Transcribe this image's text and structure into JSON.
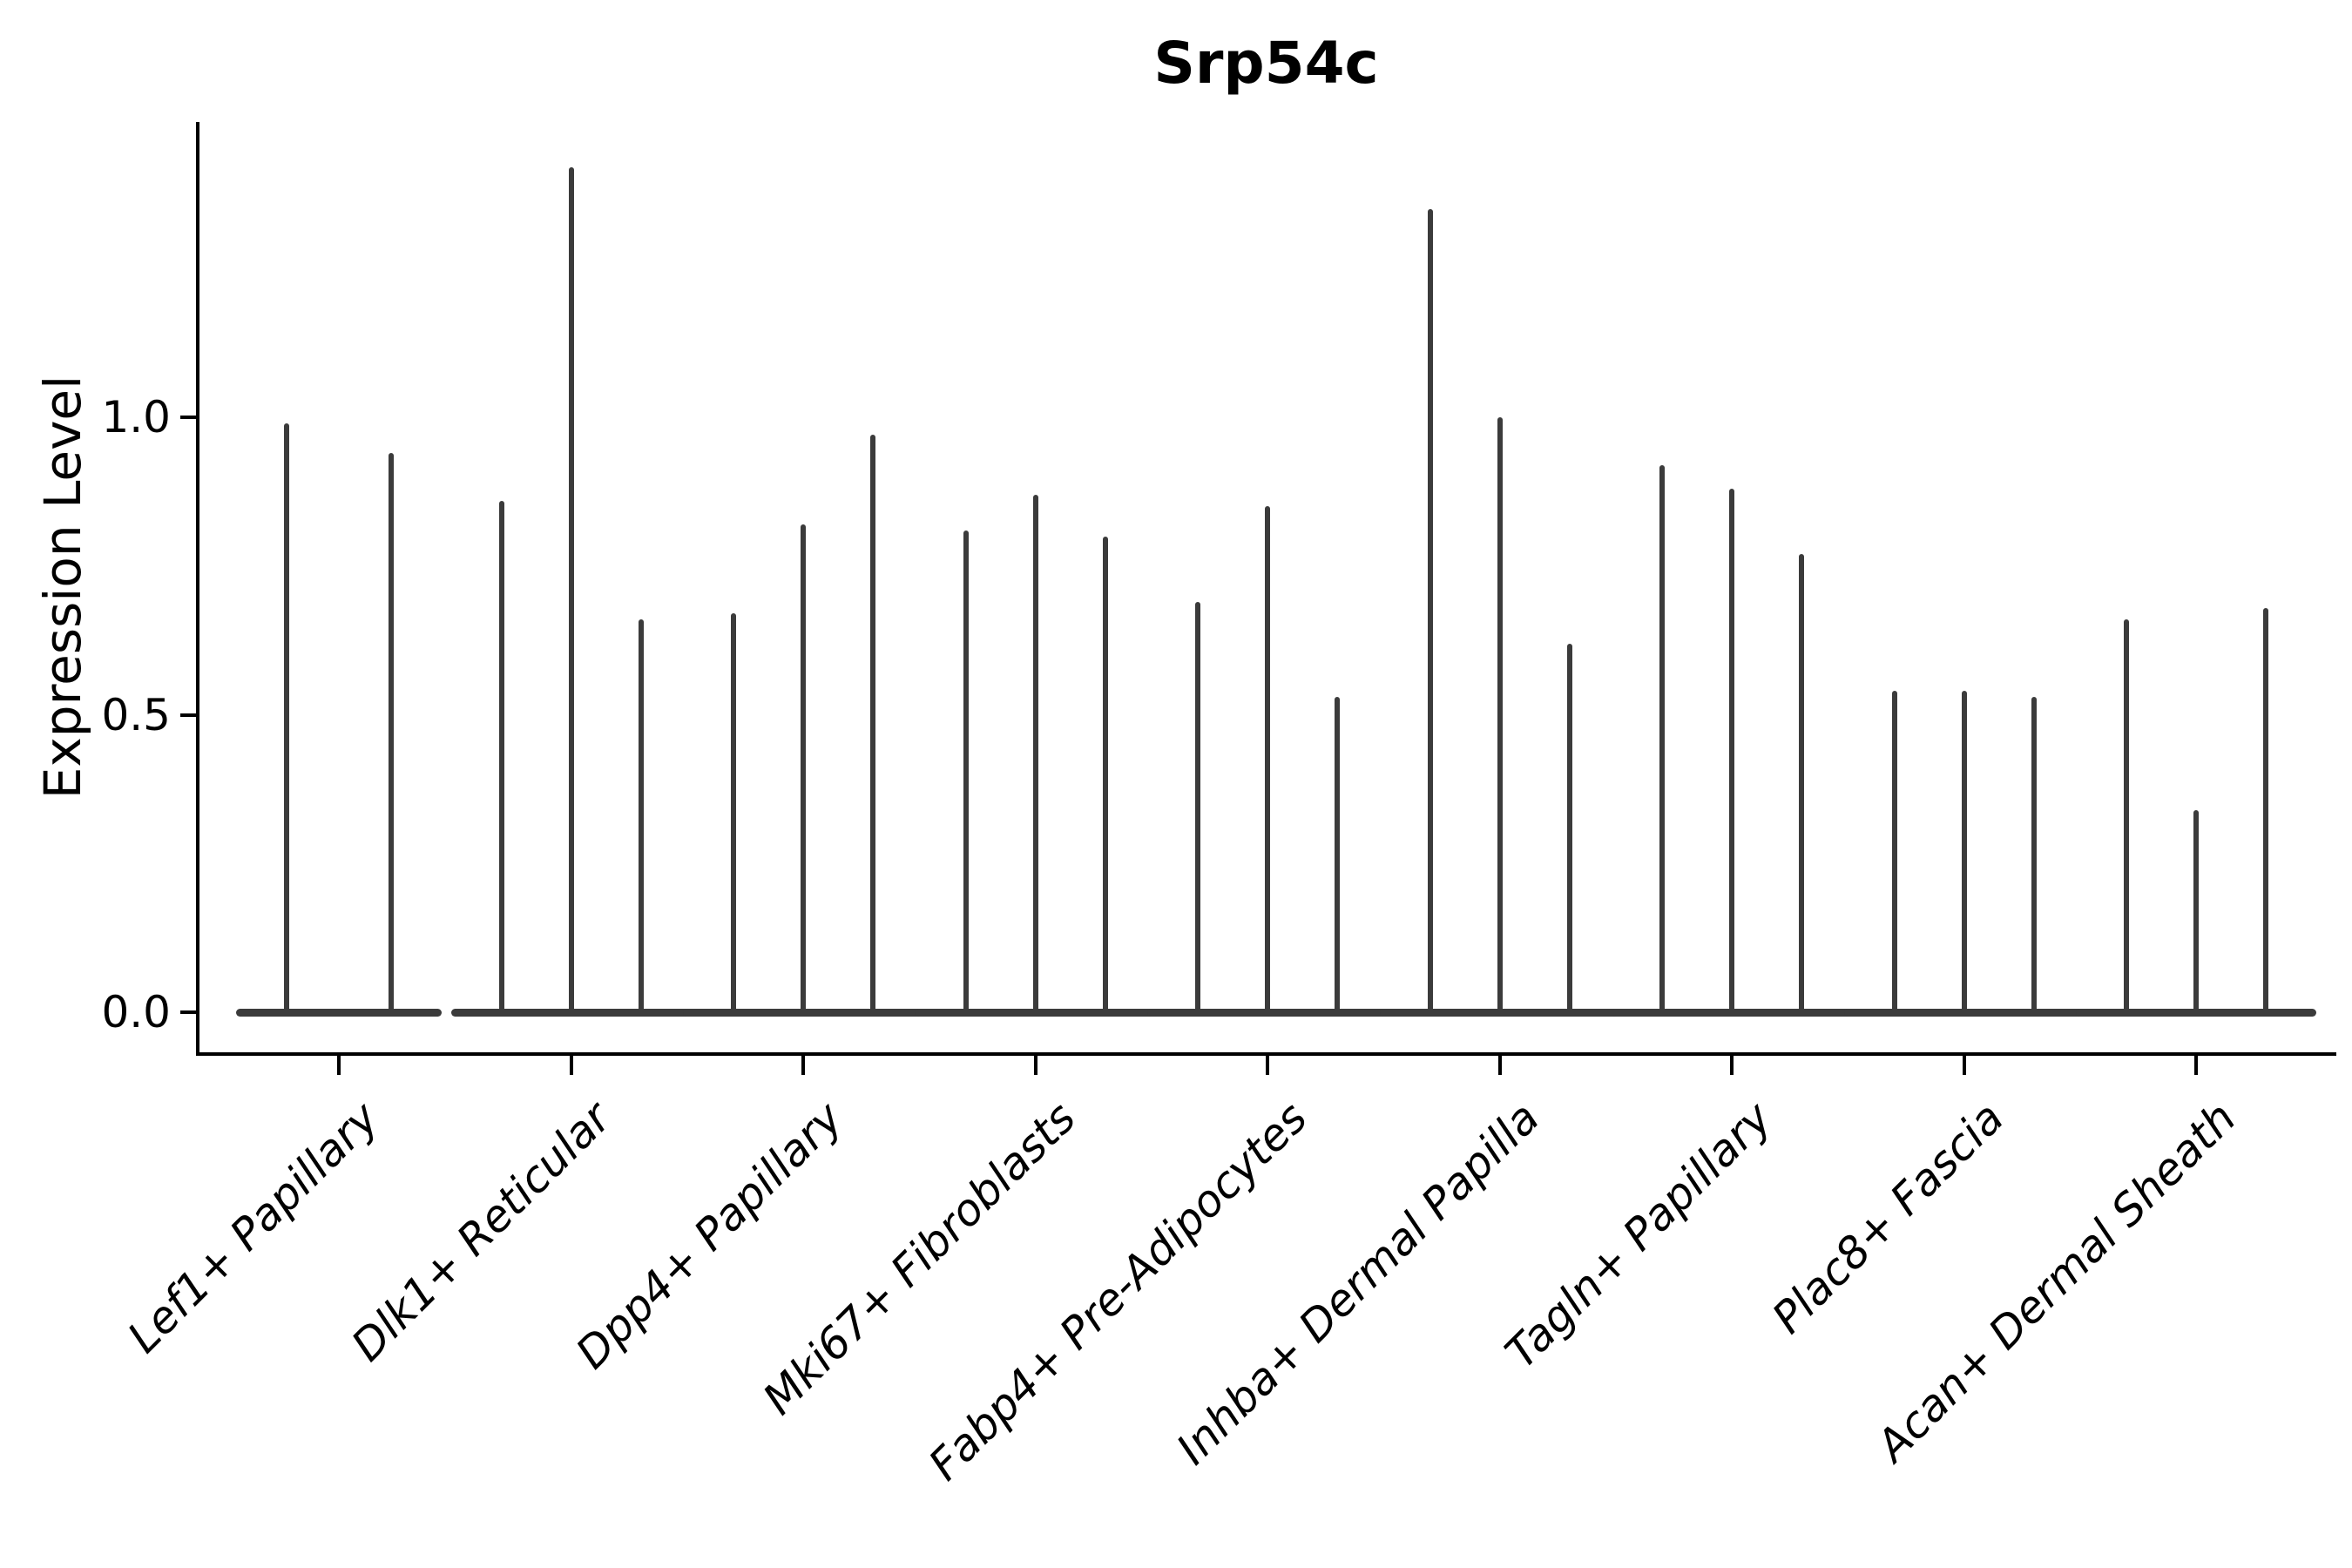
{
  "title": "Srp54c",
  "ylabel": "Expression Level",
  "colors": {
    "violin": "#3b3b3b",
    "axis": "#000000",
    "background": "#ffffff"
  },
  "chart_data": {
    "type": "violin",
    "title": "Srp54c",
    "xlabel": "",
    "ylabel": "Expression Level",
    "ylim": [
      -0.07,
      1.5
    ],
    "yticks": [
      0.0,
      0.5,
      1.0
    ],
    "ytick_labels": [
      "0.0",
      "0.5",
      "1.0"
    ],
    "grid": false,
    "legend_position": "none",
    "categories": [
      "Lef1+ Papillary",
      "Dlk1+ Reticular",
      "Dpp4+ Papillary",
      "Mki67+ Fibroblasts",
      "Fabp4+ Pre-Adipocytes",
      "Inhba+ Dermal Papilla",
      "Tagln+ Papillary",
      "Plac8+ Fascia",
      "Acan+ Dermal Sheath"
    ],
    "groups": [
      {
        "category": "Lef1+ Papillary",
        "spike_heights": [
          0.99,
          0.94
        ]
      },
      {
        "category": "Dlk1+ Reticular",
        "spike_heights": [
          0.86,
          1.42,
          0.66
        ]
      },
      {
        "category": "Dpp4+ Papillary",
        "spike_heights": [
          0.67,
          0.82,
          0.97
        ]
      },
      {
        "category": "Mki67+ Fibroblasts",
        "spike_heights": [
          0.81,
          0.87,
          0.8
        ]
      },
      {
        "category": "Fabp4+ Pre-Adipocytes",
        "spike_heights": [
          0.69,
          0.85,
          0.53
        ]
      },
      {
        "category": "Inhba+ Dermal Papilla",
        "spike_heights": [
          1.35,
          1.0,
          0.62
        ]
      },
      {
        "category": "Tagln+ Papillary",
        "spike_heights": [
          0.92,
          0.88,
          0.77
        ]
      },
      {
        "category": "Plac8+ Fascia",
        "spike_heights": [
          0.54,
          0.54,
          0.53
        ]
      },
      {
        "category": "Acan+ Dermal Sheath",
        "spike_heights": [
          0.66,
          0.34,
          0.68
        ]
      }
    ],
    "style_note": "Each category shows very narrow dark-gray violins: a flat baseline lens at 0 with a thin vertical spike up to the max expression value."
  }
}
